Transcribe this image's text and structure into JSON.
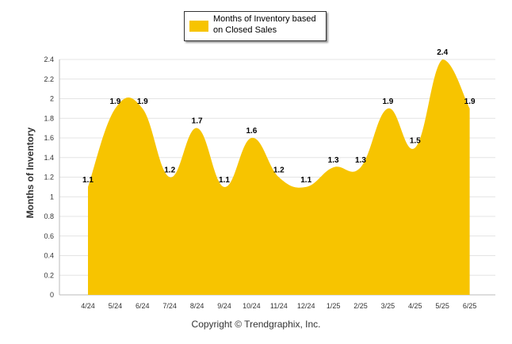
{
  "chart_data": {
    "type": "area",
    "categories": [
      "4/24",
      "5/24",
      "6/24",
      "7/24",
      "8/24",
      "9/24",
      "10/24",
      "11/24",
      "12/24",
      "1/25",
      "2/25",
      "3/25",
      "4/25",
      "5/25",
      "6/25"
    ],
    "series": [
      {
        "name": "Months of Inventory based on Closed Sales",
        "values": [
          1.1,
          1.9,
          1.9,
          1.2,
          1.7,
          1.1,
          1.6,
          1.2,
          1.1,
          1.3,
          1.3,
          1.9,
          1.5,
          2.4,
          1.9
        ]
      }
    ],
    "data_labels": [
      "1.1",
      "1.9",
      "1.9",
      "1.2",
      "1.7",
      "1.1",
      "1.6",
      "1.2",
      "1.1",
      "1.3",
      "1.3",
      "1.9",
      "1.5",
      "2.4",
      "1.9"
    ],
    "ylabel": "Months of Inventory",
    "ylim": [
      0,
      2.4
    ],
    "yticks": [
      "0",
      "0.2",
      "0.4",
      "0.6",
      "0.8",
      "1",
      "1.2",
      "1.4",
      "1.6",
      "1.8",
      "2",
      "2.2",
      "2.4"
    ],
    "grid": true,
    "legend_position": "top-center",
    "colors": {
      "series": "#f7c400"
    }
  },
  "legend": {
    "label": "Months of Inventory based on Closed Sales"
  },
  "footer": {
    "copyright": "Copyright © Trendgraphix, Inc."
  }
}
